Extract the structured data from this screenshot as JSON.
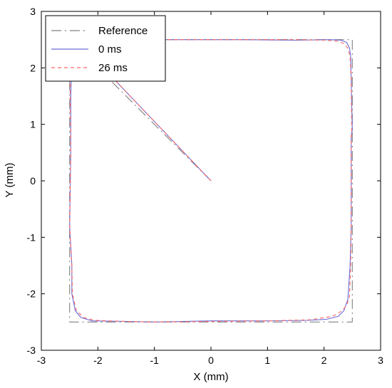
{
  "chart_data": {
    "type": "line",
    "title": "",
    "xlabel": "X (mm)",
    "ylabel": "Y (mm)",
    "xlim": [
      -3,
      3
    ],
    "ylim": [
      -3,
      3
    ],
    "grid": false,
    "legend_position": "top-left",
    "x_ticks": [
      -3,
      -2,
      -1,
      0,
      1,
      2,
      3
    ],
    "y_ticks": [
      -3,
      -2,
      -1,
      0,
      1,
      2,
      3
    ],
    "x_tick_labels": [
      "-3",
      "-2",
      "-1",
      "0",
      "1",
      "2",
      "3"
    ],
    "y_tick_labels": [
      "-3",
      "-2",
      "-1",
      "0",
      "1",
      "2",
      "3"
    ],
    "series": [
      {
        "name": "Reference",
        "color": "#808080",
        "style": "dashdot",
        "x": [
          0,
          -2.5,
          -2.5,
          2.5,
          2.5,
          -2.5
        ],
        "y": [
          0,
          2.5,
          -2.5,
          -2.5,
          2.5,
          2.5
        ]
      },
      {
        "name": "0 ms",
        "color": "#6a6ad8",
        "style": "solid",
        "x": [
          0,
          -1.0,
          -2.0,
          -2.42,
          -2.46,
          -2.48,
          -2.48,
          -2.5,
          -2.46,
          -2.46,
          -2.4,
          -2.3,
          -2.1,
          -1.5,
          -1.0,
          0,
          1.0,
          1.7,
          2.05,
          2.25,
          2.35,
          2.42,
          2.46,
          2.48,
          2.48,
          2.5,
          2.48,
          2.47,
          2.45,
          2.4,
          2.3,
          2.1,
          1.5,
          0.5,
          -0.5,
          -1.5,
          -2.0,
          -2.3,
          -2.42,
          -2.46
        ],
        "y": [
          0,
          1.05,
          2.1,
          2.45,
          2.25,
          1.5,
          0.5,
          -0.8,
          -1.5,
          -2.0,
          -2.3,
          -2.42,
          -2.48,
          -2.49,
          -2.5,
          -2.48,
          -2.48,
          -2.47,
          -2.45,
          -2.4,
          -2.3,
          -2.1,
          -1.5,
          -0.8,
          0.8,
          0.9,
          1.8,
          2.2,
          2.35,
          2.45,
          2.49,
          2.5,
          2.49,
          2.5,
          2.5,
          2.5,
          2.5,
          2.49,
          2.45,
          2.35
        ]
      },
      {
        "name": "26 ms",
        "color": "#ff6666",
        "style": "dashed",
        "x": [
          0,
          -1.0,
          -2.0,
          -2.44,
          -2.48,
          -2.49,
          -2.48,
          -2.5,
          -2.46,
          -2.45,
          -2.38,
          -2.25,
          -2.05,
          -1.5,
          -1.0,
          0,
          1.0,
          1.75,
          2.15,
          2.32,
          2.4,
          2.45,
          2.47,
          2.48,
          2.48,
          2.49,
          2.48,
          2.46,
          2.42,
          2.35,
          2.25,
          2.05,
          1.5,
          0.5,
          -0.5,
          -1.5,
          -2.0,
          -2.3,
          -2.42,
          -2.47
        ],
        "y": [
          0,
          1.05,
          2.1,
          2.45,
          2.25,
          1.5,
          0.5,
          -0.8,
          -1.5,
          -2.0,
          -2.3,
          -2.42,
          -2.47,
          -2.49,
          -2.5,
          -2.49,
          -2.48,
          -2.46,
          -2.4,
          -2.3,
          -2.2,
          -2.05,
          -1.5,
          -0.8,
          0.8,
          0.9,
          1.8,
          2.2,
          2.35,
          2.43,
          2.47,
          2.49,
          2.5,
          2.5,
          2.5,
          2.5,
          2.49,
          2.47,
          2.42,
          2.3
        ]
      }
    ]
  }
}
